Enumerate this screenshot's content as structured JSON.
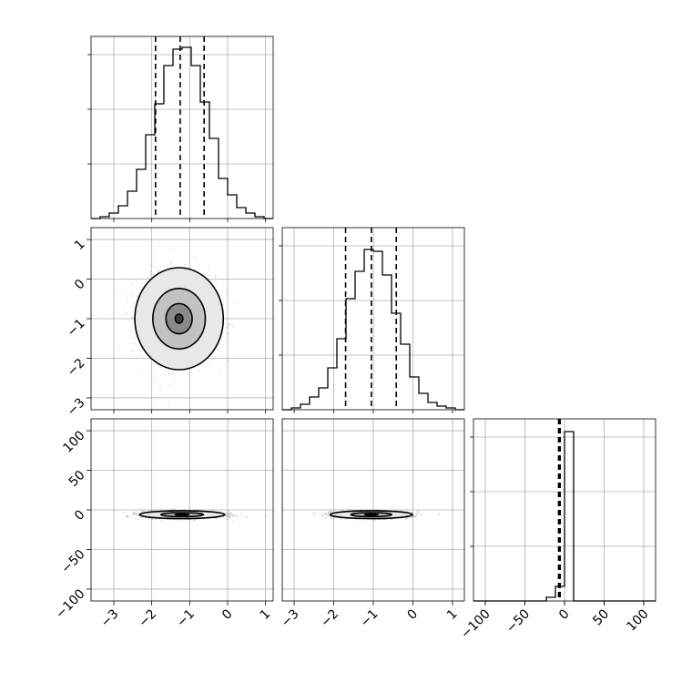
{
  "chart_data": {
    "type": "corner",
    "grid": true,
    "color": "#000000",
    "parameters": [
      {
        "axis_range": [
          -3.6,
          1.2
        ],
        "ticks": [
          -3,
          -2,
          -1,
          0,
          1
        ],
        "tick_labels": [
          "−3",
          "−2",
          "−1",
          "0",
          "1"
        ],
        "quantiles": [
          -1.9,
          -1.25,
          -0.62
        ],
        "histogram": {
          "bin_edges": [
            -3.6,
            -3.36,
            -3.12,
            -2.88,
            -2.64,
            -2.4,
            -2.16,
            -1.92,
            -1.68,
            -1.44,
            -1.2,
            -0.96,
            -0.72,
            -0.48,
            -0.24,
            0.0,
            0.24,
            0.48,
            0.72,
            0.96,
            1.2
          ],
          "heights": [
            0.0,
            0.01,
            0.03,
            0.07,
            0.15,
            0.27,
            0.46,
            0.63,
            0.84,
            0.93,
            0.94,
            0.84,
            0.64,
            0.44,
            0.22,
            0.13,
            0.06,
            0.03,
            0.01,
            0.0
          ]
        }
      },
      {
        "axis_range": [
          -3.3,
          1.3
        ],
        "ticks": [
          -3,
          -2,
          -1,
          0,
          1
        ],
        "tick_labels": [
          "−3",
          "−2",
          "−1",
          "0",
          "1"
        ],
        "quantiles": [
          -1.7,
          -1.05,
          -0.42
        ],
        "histogram": {
          "bin_edges": [
            -3.3,
            -3.07,
            -2.84,
            -2.61,
            -2.38,
            -2.15,
            -1.92,
            -1.69,
            -1.46,
            -1.23,
            -1.0,
            -0.77,
            -0.54,
            -0.31,
            -0.08,
            0.15,
            0.38,
            0.61,
            0.84,
            1.07,
            1.3
          ],
          "heights": [
            0.0,
            0.01,
            0.03,
            0.07,
            0.12,
            0.23,
            0.39,
            0.61,
            0.76,
            0.88,
            0.87,
            0.74,
            0.53,
            0.36,
            0.18,
            0.09,
            0.04,
            0.02,
            0.01,
            0.0
          ]
        }
      },
      {
        "axis_range": [
          -115,
          115
        ],
        "ticks": [
          -100,
          -50,
          0,
          50,
          100
        ],
        "tick_labels": [
          "−100",
          "−50",
          "0",
          "50",
          "100"
        ],
        "quantiles": [
          -7.5,
          -6.5,
          -5.5
        ],
        "histogram": {
          "bin_edges": [
            -115,
            -103.5,
            -92,
            -80.5,
            -69,
            -57.5,
            -46,
            -34.5,
            -23,
            -11.5,
            0,
            11.5,
            23,
            34.5,
            46,
            57.5,
            69,
            80.5,
            92,
            103.5,
            115
          ],
          "heights": [
            0,
            0,
            0,
            0,
            0,
            0,
            0,
            0,
            0.02,
            0.08,
            0.93,
            0,
            0,
            0,
            0,
            0,
            0,
            0,
            0,
            0
          ]
        }
      }
    ],
    "pairs": [
      {
        "x": 0,
        "y": 1,
        "center": [
          -1.28,
          -1.0
        ],
        "spread": [
          0.48,
          0.53
        ],
        "contour_levels": [
          0.12,
          0.4,
          0.8,
          1.35
        ]
      },
      {
        "x": 0,
        "y": 2,
        "center": [
          -1.2,
          -6.0
        ],
        "spread": [
          0.52,
          2.3
        ],
        "contour_levels": [
          0.2,
          0.6,
          1.2
        ]
      },
      {
        "x": 1,
        "y": 2,
        "center": [
          -1.05,
          -6.0
        ],
        "spread": [
          0.48,
          2.3
        ],
        "contour_levels": [
          0.2,
          0.6,
          1.2
        ]
      }
    ]
  }
}
